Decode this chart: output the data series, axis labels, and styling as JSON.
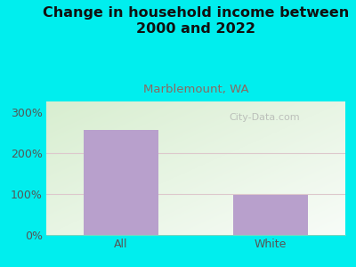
{
  "title": "Change in household income between\n2000 and 2022",
  "subtitle": "Marblemount, WA",
  "categories": [
    "All",
    "White"
  ],
  "values": [
    255,
    97
  ],
  "bar_color": "#b8a0cc",
  "title_fontsize": 11.5,
  "subtitle_fontsize": 9.5,
  "subtitle_color": "#8B6960",
  "tick_label_fontsize": 9,
  "axis_label_color": "#555555",
  "ylim": [
    0,
    325
  ],
  "yticks": [
    0,
    100,
    200,
    300
  ],
  "ytick_labels": [
    "0%",
    "100%",
    "200%",
    "300%"
  ],
  "background_color": "#00EEEE",
  "watermark": "City-Data.com",
  "gridline_color": "#ddc8cc",
  "title_color": "#111111"
}
